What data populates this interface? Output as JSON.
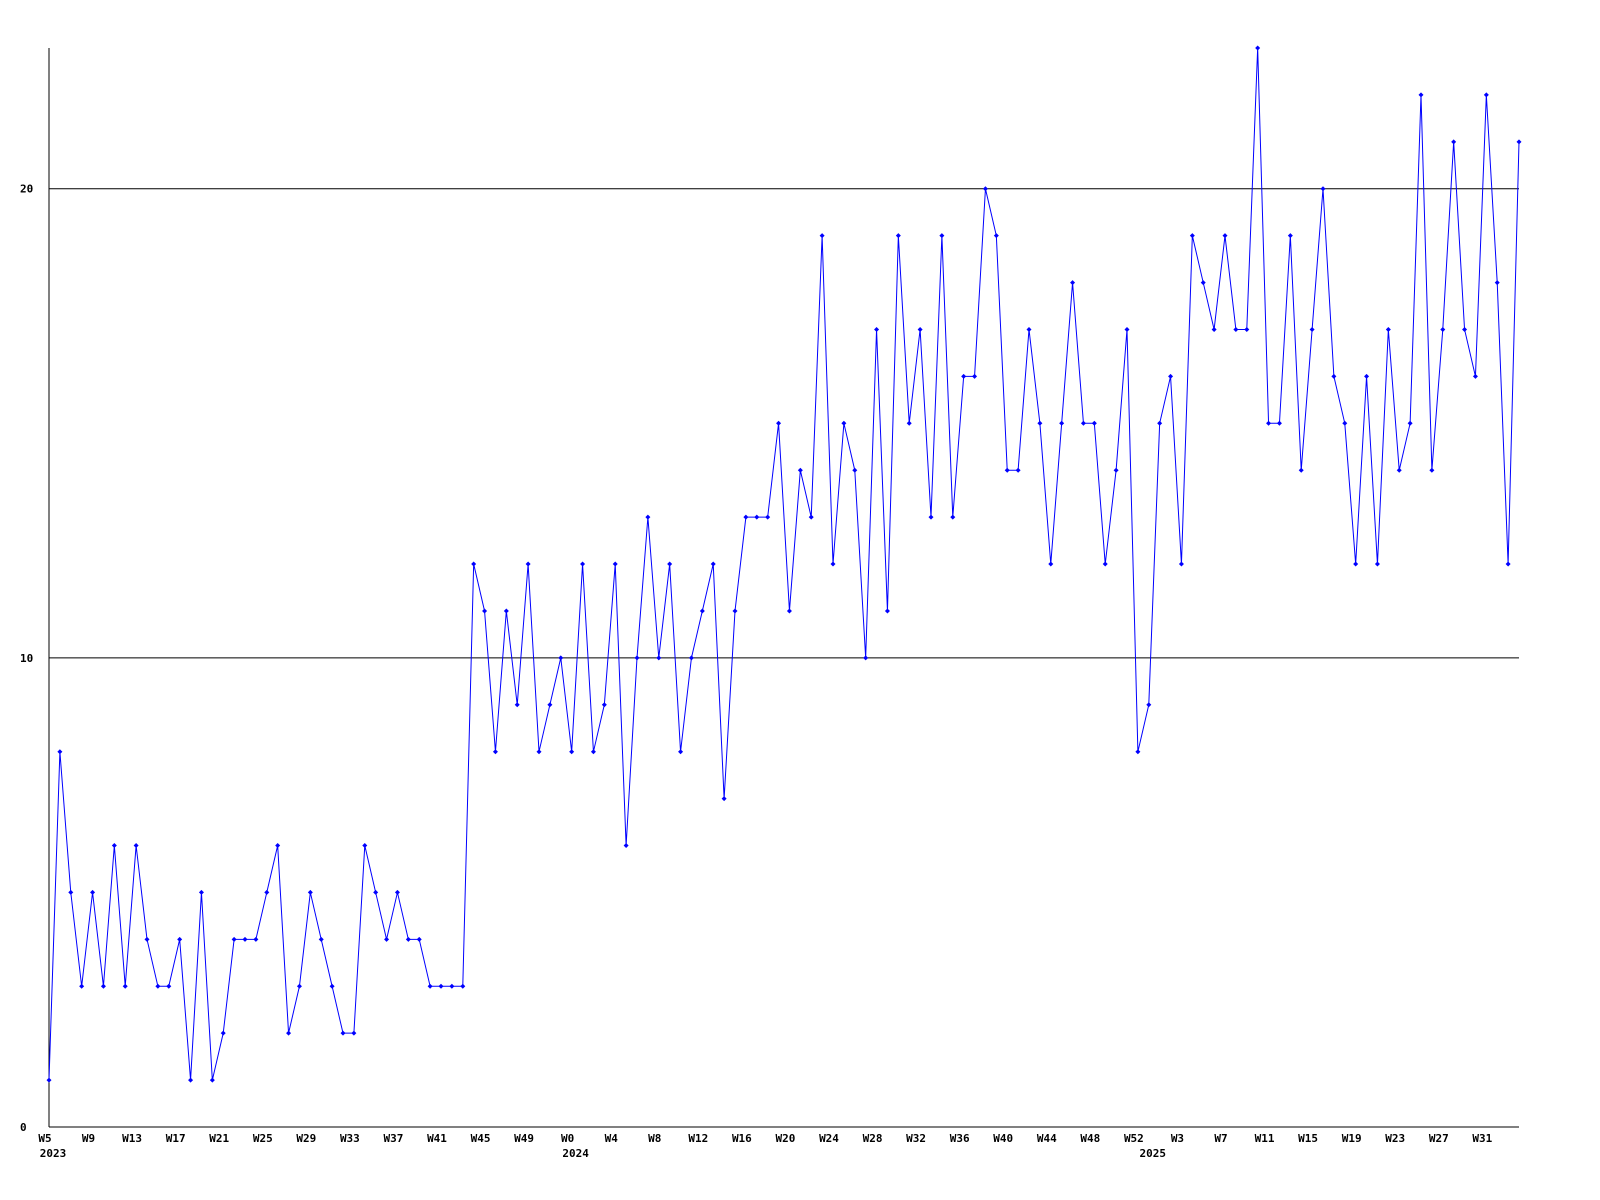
{
  "chart_data": {
    "type": "line",
    "categories": [
      "W5",
      null,
      null,
      null,
      "W9",
      null,
      null,
      null,
      "W13",
      null,
      null,
      null,
      "W17",
      null,
      null,
      null,
      "W21",
      null,
      null,
      null,
      "W25",
      null,
      null,
      null,
      "W29",
      null,
      null,
      null,
      "W33",
      null,
      null,
      null,
      "W37",
      null,
      null,
      null,
      "W41",
      null,
      null,
      null,
      "W45",
      null,
      null,
      null,
      "W49",
      null,
      null,
      null,
      "W0",
      null,
      null,
      null,
      "W4",
      null,
      null,
      null,
      "W8",
      null,
      null,
      null,
      "W12",
      null,
      null,
      null,
      "W16",
      null,
      null,
      null,
      "W20",
      null,
      null,
      null,
      "W24",
      null,
      null,
      null,
      "W28",
      null,
      null,
      null,
      "W32",
      null,
      null,
      null,
      "W36",
      null,
      null,
      null,
      "W40",
      null,
      null,
      null,
      "W44",
      null,
      null,
      null,
      "W48",
      null,
      null,
      null,
      "W52",
      null,
      null,
      null,
      "W3",
      null,
      null,
      null,
      "W7",
      null,
      null,
      null,
      "W11",
      null,
      null,
      null,
      "W15",
      null,
      null,
      null,
      "W19",
      null,
      null,
      null,
      "W23",
      null,
      null,
      null,
      "W27",
      null,
      null,
      null,
      "W31",
      null,
      null,
      null
    ],
    "category_years": [
      "2023",
      null,
      null,
      null,
      null,
      null,
      null,
      null,
      null,
      null,
      null,
      null,
      null,
      null,
      null,
      null,
      null,
      null,
      null,
      null,
      null,
      null,
      null,
      null,
      null,
      null,
      null,
      null,
      null,
      null,
      null,
      null,
      null,
      null,
      null,
      null,
      null,
      null,
      null,
      null,
      null,
      null,
      null,
      null,
      null,
      null,
      null,
      null,
      "2024",
      null,
      null,
      null,
      null,
      null,
      null,
      null,
      null,
      null,
      null,
      null,
      null,
      null,
      null,
      null,
      null,
      null,
      null,
      null,
      null,
      null,
      null,
      null,
      null,
      null,
      null,
      null,
      null,
      null,
      null,
      null,
      null,
      null,
      null,
      null,
      null,
      null,
      null,
      null,
      null,
      null,
      null,
      null,
      null,
      null,
      null,
      null,
      null,
      null,
      null,
      null,
      null,
      "2025",
      null,
      null,
      null,
      null,
      null,
      null,
      null,
      null,
      null,
      null,
      null,
      null,
      null,
      null,
      null,
      null,
      null,
      null,
      null,
      null,
      null,
      null,
      null,
      null,
      null,
      null,
      null,
      null,
      null,
      null,
      null,
      null,
      null,
      null
    ],
    "series": [
      {
        "color": "#0000ff",
        "values": [
          1,
          8,
          5,
          3,
          5,
          3,
          6,
          3,
          6,
          4,
          3,
          3,
          4,
          1,
          5,
          1,
          2,
          4,
          4,
          4,
          5,
          6,
          2,
          3,
          5,
          4,
          3,
          2,
          2,
          6,
          5,
          4,
          5,
          4,
          4,
          3,
          3,
          3,
          3,
          12,
          11,
          8,
          11,
          9,
          12,
          8,
          9,
          10,
          8,
          12,
          8,
          9,
          12,
          6,
          10,
          13,
          10,
          12,
          8,
          10,
          11,
          12,
          7,
          11,
          13,
          13,
          13,
          15,
          11,
          14,
          13,
          19,
          12,
          15,
          14,
          10,
          17,
          11,
          19,
          15,
          17,
          13,
          19,
          13,
          16,
          16,
          20,
          19,
          14,
          14,
          17,
          15,
          12,
          15,
          18,
          15,
          15,
          12,
          14,
          17,
          8,
          9,
          15,
          16,
          12,
          19,
          18,
          17,
          19,
          17,
          17,
          23,
          15,
          15,
          19,
          14,
          17,
          20,
          16,
          15,
          12,
          16,
          12,
          17,
          14,
          15,
          22,
          14,
          17,
          21,
          17,
          16,
          22,
          18,
          12,
          21
        ]
      }
    ],
    "ylim": [
      0,
      23
    ],
    "yticks": [
      0,
      10,
      20
    ],
    "grid": true
  }
}
